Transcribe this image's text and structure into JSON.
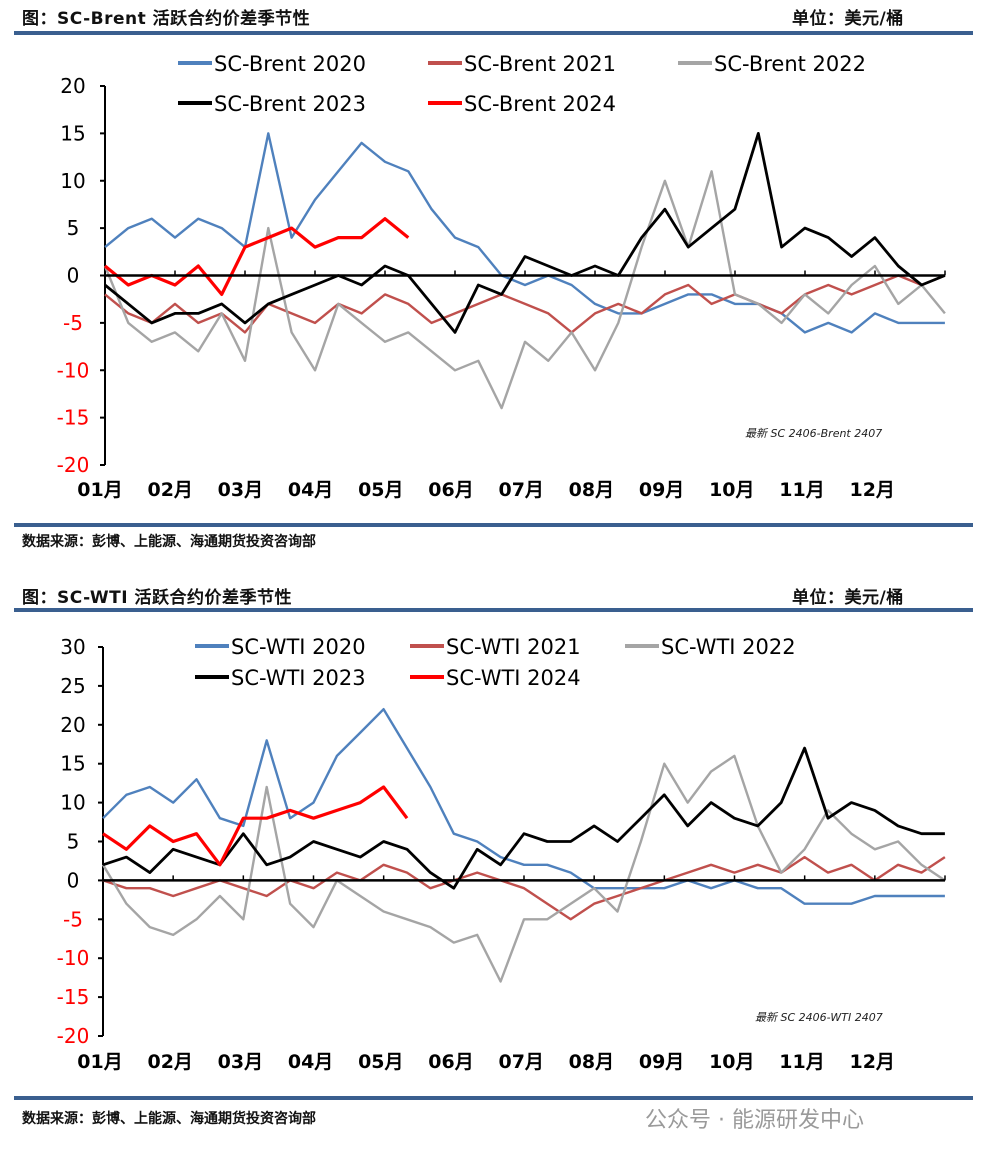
{
  "watermark": "公众号 · 能源研发中心",
  "chart_data": [
    {
      "type": "line",
      "title": "图：SC-Brent 活跃合约价差季节性",
      "unit": "单位：美元/桶",
      "source": "数据来源：彭博、上能源、海通期货投资咨询部",
      "annotation": "最新 SC 2406-Brent 2407",
      "ylim": [
        -20,
        20
      ],
      "yticks": [
        20,
        15,
        10,
        5,
        0,
        -5,
        -10,
        -15,
        -20
      ],
      "xlabels": [
        "01月",
        "02月",
        "03月",
        "04月",
        "05月",
        "06月",
        "07月",
        "08月",
        "09月",
        "10月",
        "11月",
        "12月"
      ],
      "x_unit": "month index (0 = start of Jan, 12 = end of Dec)",
      "x_step": 0.3333,
      "series": [
        {
          "name": "SC-Brent 2020",
          "color": "#4F81BD",
          "values": [
            3,
            5,
            6,
            4,
            6,
            5,
            3,
            15,
            4,
            8,
            11,
            14,
            12,
            11,
            7,
            4,
            3,
            0,
            -1,
            0,
            -1,
            -3,
            -4,
            -4,
            -3,
            -2,
            -2,
            -3,
            -3,
            -4,
            -6,
            -5,
            -6,
            -4,
            -5,
            -5,
            -5
          ]
        },
        {
          "name": "SC-Brent 2021",
          "color": "#C0504D",
          "values": [
            -2,
            -4,
            -5,
            -3,
            -5,
            -4,
            -6,
            -3,
            -4,
            -5,
            -3,
            -4,
            -2,
            -3,
            -5,
            -4,
            -3,
            -2,
            -3,
            -4,
            -6,
            -4,
            -3,
            -4,
            -2,
            -1,
            -3,
            -2,
            -3,
            -4,
            -2,
            -1,
            -2,
            -1,
            0,
            -1,
            0
          ]
        },
        {
          "name": "SC-Brent 2022",
          "color": "#A5A5A5",
          "values": [
            1,
            -5,
            -7,
            -6,
            -8,
            -4,
            -9,
            5,
            -6,
            -10,
            -3,
            -5,
            -7,
            -6,
            -8,
            -10,
            -9,
            -14,
            -7,
            -9,
            -6,
            -10,
            -5,
            3,
            10,
            3,
            11,
            -2,
            -3,
            -5,
            -2,
            -4,
            -1,
            1,
            -3,
            -1,
            -4
          ]
        },
        {
          "name": "SC-Brent 2023",
          "color": "#000000",
          "values": [
            -1,
            -3,
            -5,
            -4,
            -4,
            -3,
            -5,
            -3,
            -2,
            -1,
            0,
            -1,
            1,
            0,
            -3,
            -6,
            -1,
            -2,
            2,
            1,
            0,
            1,
            0,
            4,
            7,
            3,
            5,
            7,
            15,
            3,
            5,
            4,
            2,
            4,
            1,
            -1,
            0
          ]
        },
        {
          "name": "SC-Brent 2024",
          "color": "#FF0000",
          "values": [
            1,
            -1,
            0,
            -1,
            1,
            -2,
            3,
            4,
            5,
            3,
            4,
            4,
            6,
            4
          ]
        }
      ]
    },
    {
      "type": "line",
      "title": "图：SC-WTI 活跃合约价差季节性",
      "unit": "单位：美元/桶",
      "source": "数据来源：彭博、上能源、海通期货投资咨询部",
      "annotation": "最新 SC 2406-WTI 2407",
      "ylim": [
        -20,
        30
      ],
      "yticks": [
        30,
        25,
        20,
        15,
        10,
        5,
        0,
        -5,
        -10,
        -15,
        -20
      ],
      "xlabels": [
        "01月",
        "02月",
        "03月",
        "04月",
        "05月",
        "06月",
        "07月",
        "08月",
        "09月",
        "10月",
        "11月",
        "12月"
      ],
      "x_unit": "month index (0 = start of Jan, 12 = end of Dec)",
      "x_step": 0.3333,
      "series": [
        {
          "name": "SC-WTI 2020",
          "color": "#4F81BD",
          "values": [
            8,
            11,
            12,
            10,
            13,
            8,
            7,
            18,
            8,
            10,
            16,
            19,
            22,
            17,
            12,
            6,
            5,
            3,
            2,
            2,
            1,
            -1,
            -1,
            -1,
            -1,
            0,
            -1,
            0,
            -1,
            -1,
            -3,
            -3,
            -3,
            -2,
            -2,
            -2,
            -2
          ]
        },
        {
          "name": "SC-WTI 2021",
          "color": "#C0504D",
          "values": [
            0,
            -1,
            -1,
            -2,
            -1,
            0,
            -1,
            -2,
            0,
            -1,
            1,
            0,
            2,
            1,
            -1,
            0,
            1,
            0,
            -1,
            -3,
            -5,
            -3,
            -2,
            -1,
            0,
            1,
            2,
            1,
            2,
            1,
            3,
            1,
            2,
            0,
            2,
            1,
            3
          ]
        },
        {
          "name": "SC-WTI 2022",
          "color": "#A5A5A5",
          "values": [
            2,
            -3,
            -6,
            -7,
            -5,
            -2,
            -5,
            12,
            -3,
            -6,
            0,
            -2,
            -4,
            -5,
            -6,
            -8,
            -7,
            -13,
            -5,
            -5,
            -3,
            -1,
            -4,
            5,
            15,
            10,
            14,
            16,
            7,
            1,
            4,
            9,
            6,
            4,
            5,
            2,
            0
          ]
        },
        {
          "name": "SC-WTI 2023",
          "color": "#000000",
          "values": [
            2,
            3,
            1,
            4,
            3,
            2,
            6,
            2,
            3,
            5,
            4,
            3,
            5,
            4,
            1,
            -1,
            4,
            2,
            6,
            5,
            5,
            7,
            5,
            8,
            11,
            7,
            10,
            8,
            7,
            10,
            17,
            8,
            10,
            9,
            7,
            6,
            6
          ]
        },
        {
          "name": "SC-WTI 2024",
          "color": "#FF0000",
          "values": [
            6,
            4,
            7,
            5,
            6,
            2,
            8,
            8,
            9,
            8,
            9,
            10,
            12,
            8
          ]
        }
      ]
    }
  ]
}
